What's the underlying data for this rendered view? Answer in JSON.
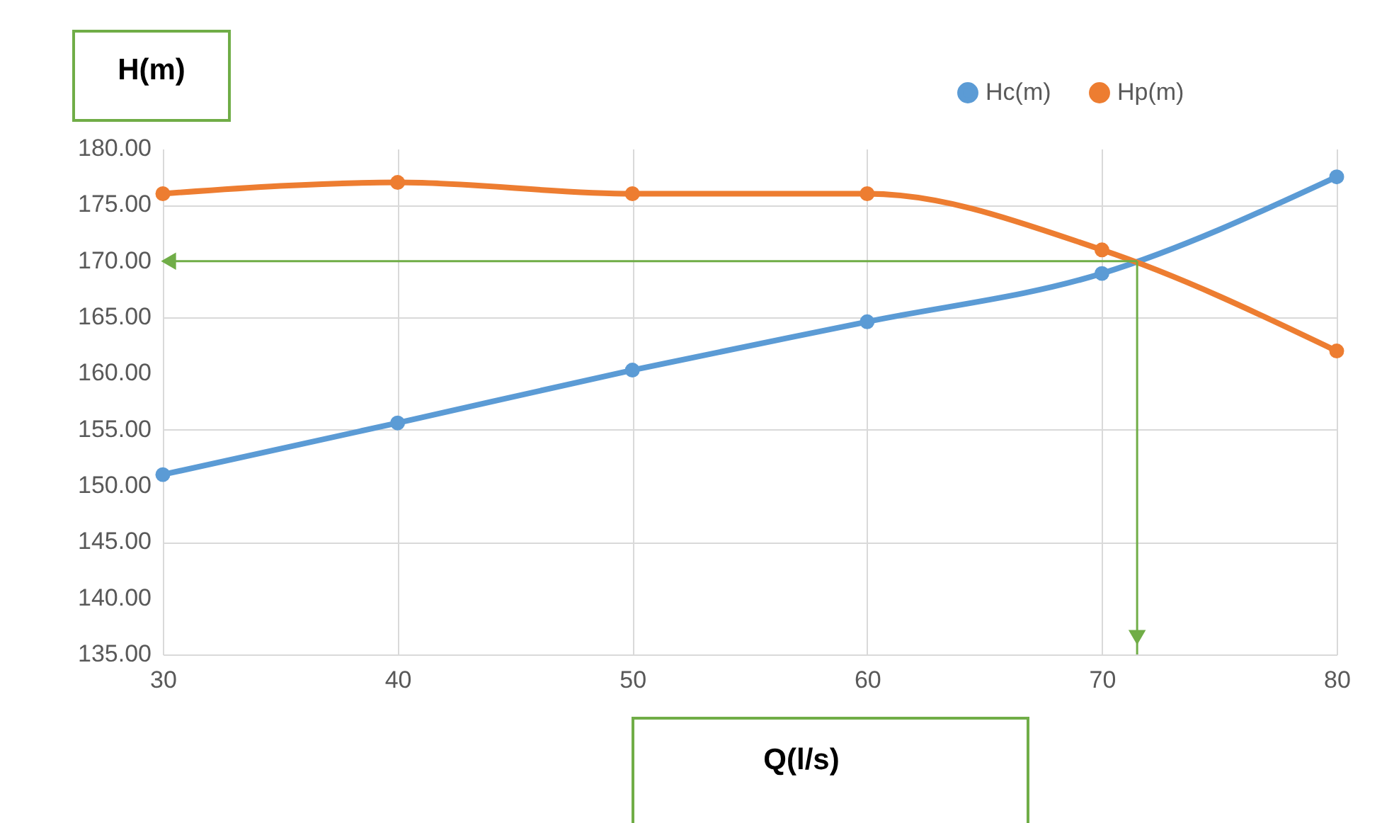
{
  "chart_data": {
    "type": "line",
    "xlabel": "Q(l/s)",
    "ylabel": "H(m)",
    "x": [
      30,
      40,
      50,
      60,
      70,
      80
    ],
    "series": [
      {
        "name": "Hc(m)",
        "color": "#5b9bd5",
        "values": [
          151.0,
          155.6,
          160.3,
          164.6,
          168.9,
          177.5
        ]
      },
      {
        "name": "Hp(m)",
        "color": "#ed7d31",
        "values": [
          176.0,
          177.0,
          176.0,
          176.0,
          171.0,
          162.0
        ]
      }
    ],
    "xlim": [
      30,
      80
    ],
    "xticks": [
      30,
      40,
      50,
      60,
      70,
      80
    ],
    "ylim": [
      135,
      180
    ],
    "yticks": [
      {
        "value": 135,
        "label": "135.00"
      },
      {
        "value": 140,
        "label": "140.00"
      },
      {
        "value": 145,
        "label": "145.00"
      },
      {
        "value": 150,
        "label": "150.00"
      },
      {
        "value": 155,
        "label": "155.00"
      },
      {
        "value": 160,
        "label": "160.00"
      },
      {
        "value": 165,
        "label": "165.00"
      },
      {
        "value": 170,
        "label": "170.00"
      },
      {
        "value": 175,
        "label": "175.00"
      },
      {
        "value": 180,
        "label": "180.00"
      }
    ],
    "ref_lines": [
      {
        "axis": "y",
        "value": 170,
        "color": "#70ad47"
      },
      {
        "axis": "x",
        "value": 71.5,
        "color": "#70ad47"
      }
    ],
    "grid": true,
    "legend": "top right",
    "marker": "circle",
    "line_style": "solid"
  }
}
